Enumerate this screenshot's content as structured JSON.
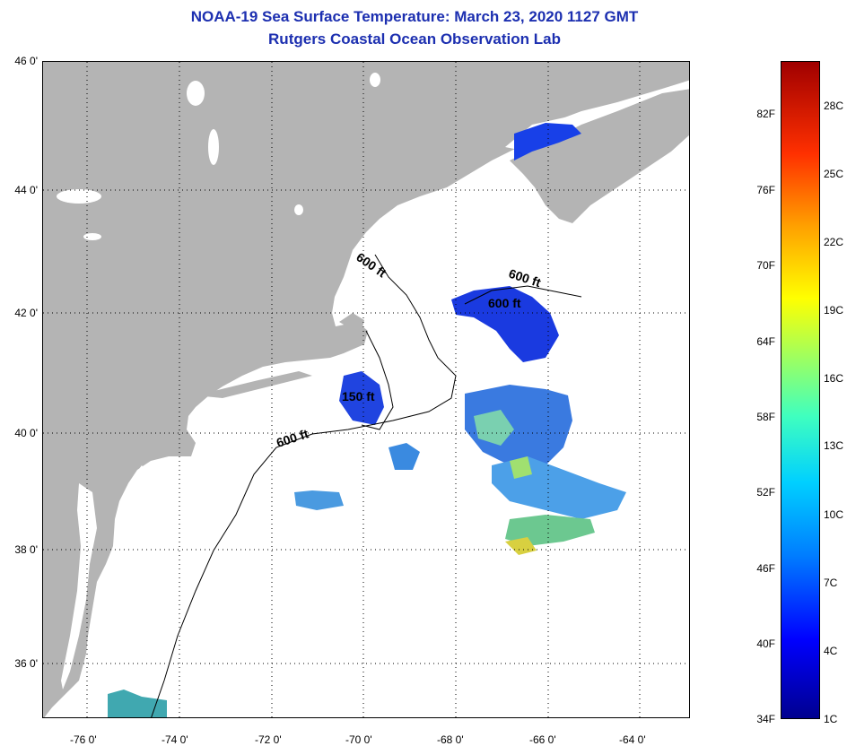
{
  "title": {
    "line1": "NOAA-19 Sea Surface Temperature:  March 23, 2020 1127 GMT",
    "line2": "Rutgers Coastal Ocean Observation Lab"
  },
  "map": {
    "lat_labels": [
      "46 0'",
      "44 0'",
      "42 0'",
      "40 0'",
      "38 0'",
      "36 0'"
    ],
    "lon_labels": [
      "-76 0'",
      "-74 0'",
      "-72 0'",
      "-70 0'",
      "-68 0'",
      "-66 0'",
      "-64 0'"
    ],
    "contour_labels": [
      "600 ft",
      "600 ft",
      "600 ft",
      "150 ft",
      "600 ft"
    ],
    "colors": {
      "land": "#b4b4b4",
      "water": "#ffffff",
      "grid": "#000000"
    }
  },
  "colorbar": {
    "fahrenheit": [
      "82F",
      "76F",
      "70F",
      "64F",
      "58F",
      "52F",
      "46F",
      "40F",
      "34F"
    ],
    "celsius": [
      "28C",
      "25C",
      "22C",
      "19C",
      "16C",
      "13C",
      "10C",
      "7C",
      "4C",
      "1C"
    ]
  }
}
